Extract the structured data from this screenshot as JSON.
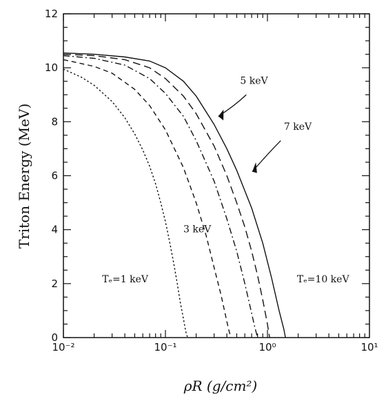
{
  "chart_data": {
    "type": "line",
    "title": "",
    "xlabel": "ρR (g/cm²)",
    "ylabel": "Triton Energy (MeV)",
    "x_scale": "log",
    "xlim": [
      0.01,
      10
    ],
    "ylim": [
      0,
      12
    ],
    "x_tick_labels": [
      "10⁻²",
      "10⁻¹",
      "10⁰",
      "10¹"
    ],
    "y_tick_labels": [
      "0",
      "2",
      "4",
      "6",
      "8",
      "10",
      "12"
    ],
    "grid": false,
    "series": [
      {
        "name": "Te=1 keV",
        "dash": "dotted",
        "x": [
          0.01,
          0.015,
          0.02,
          0.03,
          0.04,
          0.05,
          0.06,
          0.07,
          0.08,
          0.09,
          0.1,
          0.11,
          0.12,
          0.13,
          0.14,
          0.15,
          0.155,
          0.16,
          0.165
        ],
        "y": [
          9.95,
          9.65,
          9.35,
          8.75,
          8.15,
          7.55,
          6.95,
          6.35,
          5.7,
          5.0,
          4.3,
          3.55,
          2.8,
          2.05,
          1.3,
          0.7,
          0.4,
          0.15,
          0.0
        ]
      },
      {
        "name": "3 keV",
        "dash": "dashed",
        "x": [
          0.01,
          0.02,
          0.03,
          0.05,
          0.07,
          0.1,
          0.15,
          0.2,
          0.25,
          0.3,
          0.35,
          0.4,
          0.42,
          0.44
        ],
        "y": [
          10.3,
          10.05,
          9.8,
          9.2,
          8.6,
          7.7,
          6.3,
          5.0,
          3.8,
          2.6,
          1.6,
          0.6,
          0.25,
          0.0
        ]
      },
      {
        "name": "5 keV",
        "dash": "dash-dot",
        "x": [
          0.01,
          0.02,
          0.04,
          0.07,
          0.1,
          0.15,
          0.2,
          0.3,
          0.4,
          0.5,
          0.6,
          0.7,
          0.75,
          0.8
        ],
        "y": [
          10.45,
          10.35,
          10.1,
          9.6,
          9.05,
          8.2,
          7.3,
          5.8,
          4.4,
          3.2,
          2.0,
          0.9,
          0.4,
          0.0
        ]
      },
      {
        "name": "7 keV",
        "dash": "long-dash",
        "x": [
          0.01,
          0.02,
          0.04,
          0.07,
          0.1,
          0.15,
          0.2,
          0.3,
          0.4,
          0.5,
          0.6,
          0.7,
          0.8,
          0.9,
          1.0,
          1.05
        ],
        "y": [
          10.5,
          10.45,
          10.3,
          10.0,
          9.6,
          8.95,
          8.3,
          7.1,
          6.0,
          5.0,
          4.1,
          3.2,
          2.3,
          1.4,
          0.5,
          0.0
        ]
      },
      {
        "name": "Te=10 keV",
        "dash": "solid",
        "x": [
          0.01,
          0.02,
          0.04,
          0.07,
          0.1,
          0.15,
          0.2,
          0.3,
          0.4,
          0.5,
          0.7,
          0.9,
          1.1,
          1.3,
          1.45,
          1.5
        ],
        "y": [
          10.55,
          10.5,
          10.4,
          10.25,
          10.0,
          9.5,
          8.95,
          7.9,
          7.0,
          6.2,
          4.8,
          3.5,
          2.2,
          1.0,
          0.3,
          0.0
        ]
      }
    ],
    "annotations": [
      {
        "text": "Tₑ=1 keV",
        "series": "Te=1 keV",
        "x": 0.024,
        "y": 2.05
      },
      {
        "text": "3 keV",
        "series": "3 keV",
        "x": 0.15,
        "y": 3.9
      },
      {
        "text": "5 keV",
        "series": "5 keV",
        "x": 0.54,
        "y": 9.4
      },
      {
        "text": "7 keV",
        "series": "7 keV",
        "x": 1.45,
        "y": 7.7
      },
      {
        "text": "Tₑ=10 keV",
        "series": "Te=10 keV",
        "x": 1.95,
        "y": 2.05
      }
    ]
  }
}
